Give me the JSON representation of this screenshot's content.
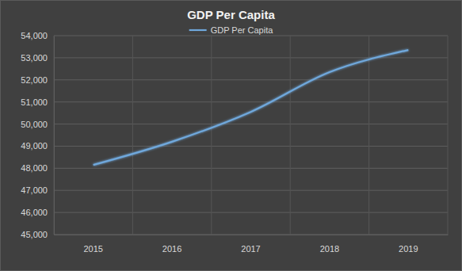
{
  "chart_data": {
    "type": "line",
    "title": "GDP Per Capita",
    "categories": [
      "2015",
      "2016",
      "2017",
      "2018",
      "2019"
    ],
    "series": [
      {
        "name": "GDP Per Capita",
        "color": "#6fa8dc",
        "values": [
          48150,
          49200,
          50550,
          52350,
          53350
        ]
      }
    ],
    "ylim": [
      45000,
      54000
    ],
    "yticks": [
      {
        "value": 45000,
        "label": "45,000"
      },
      {
        "value": 46000,
        "label": "46,000"
      },
      {
        "value": 47000,
        "label": "47,000"
      },
      {
        "value": 48000,
        "label": "48,000"
      },
      {
        "value": 49000,
        "label": "49,000"
      },
      {
        "value": 50000,
        "label": "50,000"
      },
      {
        "value": 51000,
        "label": "51,000"
      },
      {
        "value": 52000,
        "label": "52,000"
      },
      {
        "value": 53000,
        "label": "53,000"
      },
      {
        "value": 54000,
        "label": "54,000"
      }
    ],
    "grid": true,
    "legend": "top"
  }
}
